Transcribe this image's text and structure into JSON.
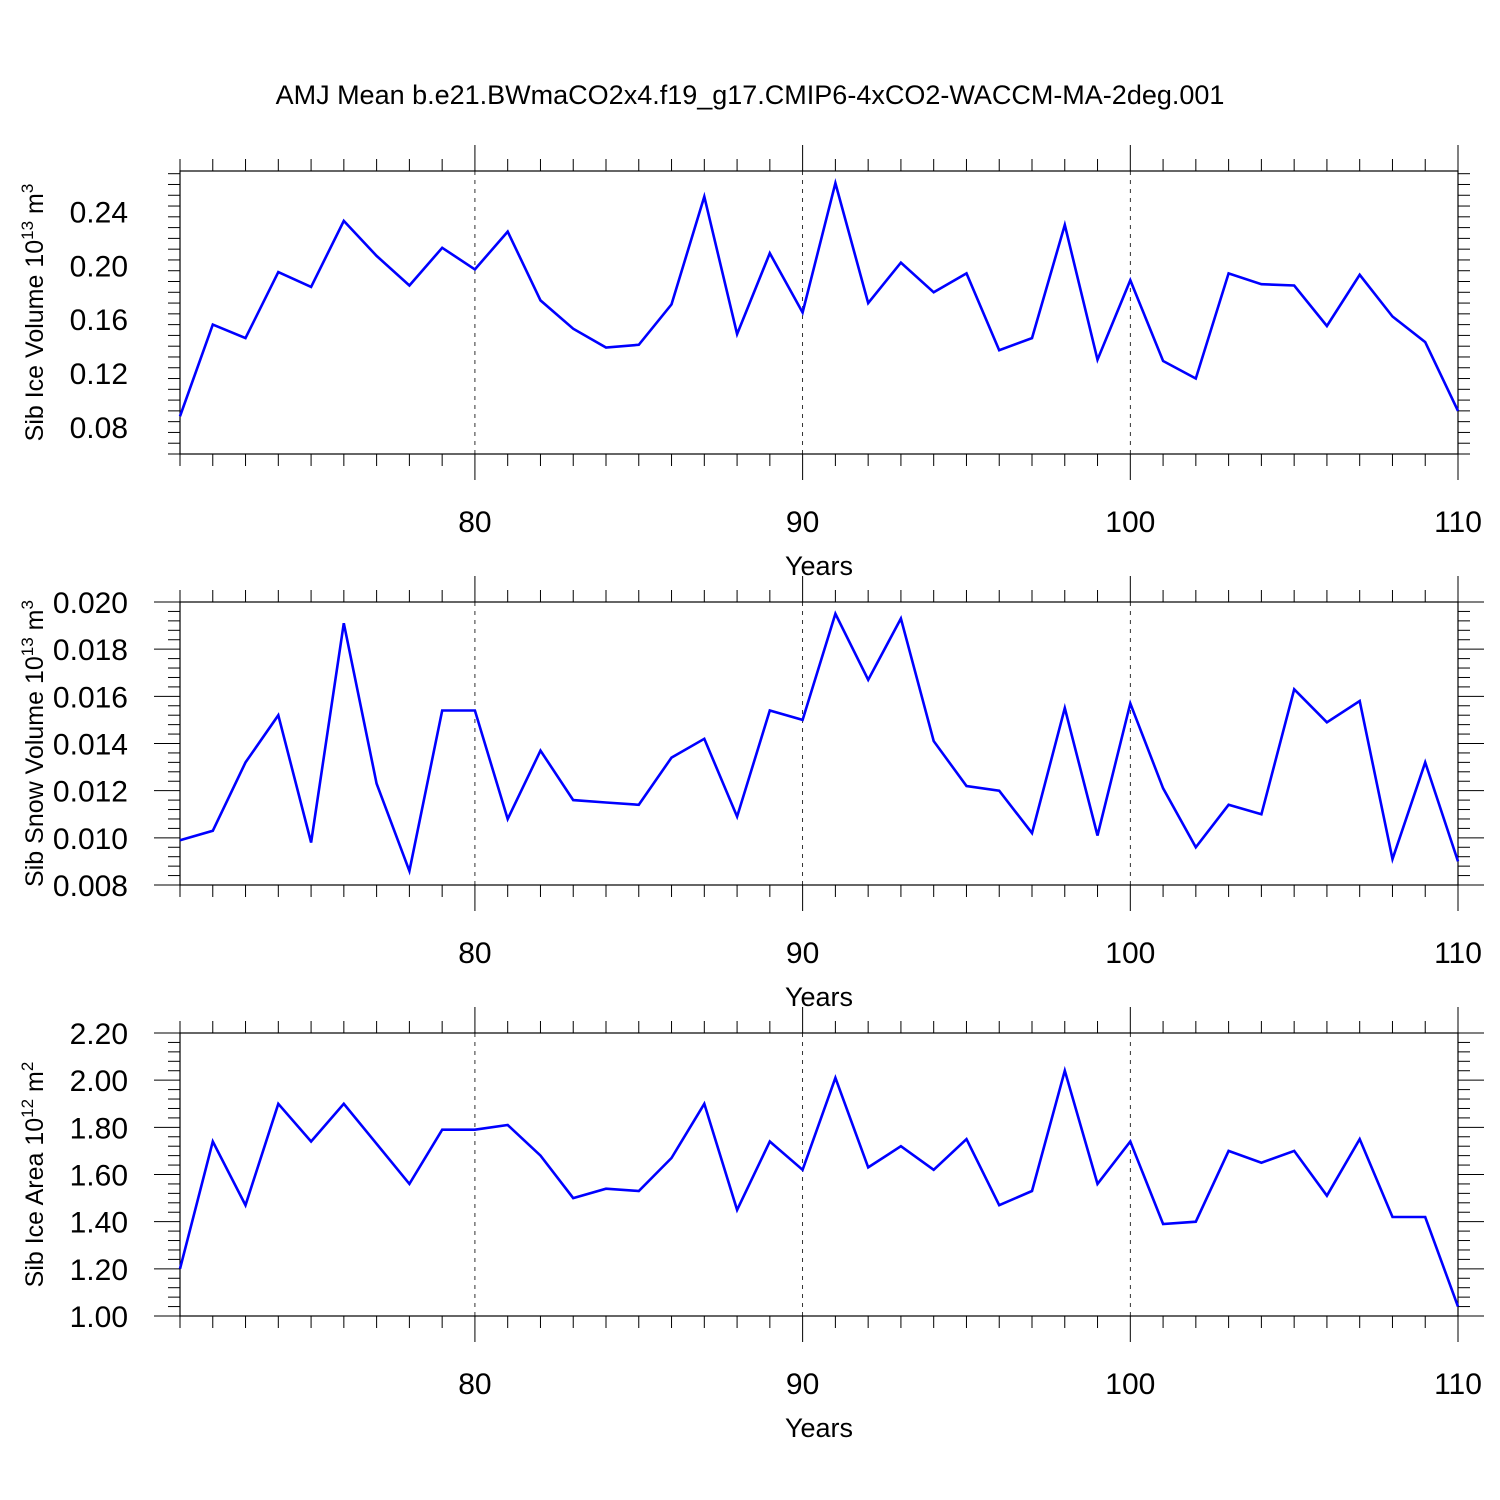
{
  "title": "AMJ Mean b.e21.BWmaCO2x4.f19_g17.CMIP6-4xCO2-WACCM-MA-2deg.001",
  "line_color": "#0000ff",
  "chart_data": [
    {
      "type": "line",
      "xlabel": "Years",
      "ylabel_text": "Sib Ice Volume 10",
      "ylabel_exp": "13",
      "ylabel_unit": " m",
      "ylabel_unit_exp": "3",
      "xlim": [
        71,
        110
      ],
      "ylim": [
        0.06,
        0.27
      ],
      "xticks": [
        80,
        90,
        100,
        110
      ],
      "xtick_labels": [
        "80",
        "90",
        "100",
        "110"
      ],
      "yticks": [
        0.08,
        0.12,
        0.16,
        0.2,
        0.24
      ],
      "ytick_labels": [
        "0.08",
        "0.12",
        "0.16",
        "0.20",
        "0.24"
      ],
      "grid": "vertical dashed at major x ticks",
      "x": [
        71,
        72,
        73,
        74,
        75,
        76,
        77,
        78,
        79,
        80,
        81,
        82,
        83,
        84,
        85,
        86,
        87,
        88,
        89,
        90,
        91,
        92,
        93,
        94,
        95,
        96,
        97,
        98,
        99,
        100,
        101,
        102,
        103,
        104,
        105,
        106,
        107,
        108,
        109,
        110
      ],
      "values": [
        0.088,
        0.156,
        0.146,
        0.195,
        0.184,
        0.233,
        0.207,
        0.185,
        0.213,
        0.197,
        0.225,
        0.174,
        0.153,
        0.139,
        0.141,
        0.171,
        0.251,
        0.149,
        0.209,
        0.165,
        0.261,
        0.172,
        0.202,
        0.18,
        0.194,
        0.137,
        0.146,
        0.23,
        0.13,
        0.189,
        0.129,
        0.116,
        0.194,
        0.186,
        0.185,
        0.155,
        0.193,
        0.162,
        0.143,
        0.092
      ]
    },
    {
      "type": "line",
      "xlabel": "Years",
      "ylabel_text": "Sib Snow Volume 10",
      "ylabel_exp": "13",
      "ylabel_unit": " m",
      "ylabel_unit_exp": "3",
      "xlim": [
        71,
        110
      ],
      "ylim": [
        0.008,
        0.02
      ],
      "xticks": [
        80,
        90,
        100,
        110
      ],
      "xtick_labels": [
        "80",
        "90",
        "100",
        "110"
      ],
      "yticks": [
        0.008,
        0.01,
        0.012,
        0.014,
        0.016,
        0.018,
        0.02
      ],
      "ytick_labels": [
        "0.008",
        "0.010",
        "0.012",
        "0.014",
        "0.016",
        "0.018",
        "0.020"
      ],
      "grid": "vertical dashed at major x ticks",
      "x": [
        71,
        72,
        73,
        74,
        75,
        76,
        77,
        78,
        79,
        80,
        81,
        82,
        83,
        84,
        85,
        86,
        87,
        88,
        89,
        90,
        91,
        92,
        93,
        94,
        95,
        96,
        97,
        98,
        99,
        100,
        101,
        102,
        103,
        104,
        105,
        106,
        107,
        108,
        109,
        110
      ],
      "values": [
        0.0099,
        0.0103,
        0.0132,
        0.0152,
        0.0098,
        0.0191,
        0.0123,
        0.0086,
        0.0154,
        0.0154,
        0.0108,
        0.0137,
        0.0116,
        0.0115,
        0.0114,
        0.0134,
        0.0142,
        0.0109,
        0.0154,
        0.015,
        0.0195,
        0.0167,
        0.0193,
        0.0141,
        0.0122,
        0.012,
        0.0102,
        0.0155,
        0.0101,
        0.0157,
        0.0121,
        0.0096,
        0.0114,
        0.011,
        0.0163,
        0.0149,
        0.0158,
        0.0091,
        0.0132,
        0.009
      ]
    },
    {
      "type": "line",
      "xlabel": "Years",
      "ylabel_text": "Sib Ice Area 10",
      "ylabel_exp": "12",
      "ylabel_unit": " m",
      "ylabel_unit_exp": "2",
      "xlim": [
        71,
        110
      ],
      "ylim": [
        1.0,
        2.2
      ],
      "xticks": [
        80,
        90,
        100,
        110
      ],
      "xtick_labels": [
        "80",
        "90",
        "100",
        "110"
      ],
      "yticks": [
        1.0,
        1.2,
        1.4,
        1.6,
        1.8,
        2.0,
        2.2
      ],
      "ytick_labels": [
        "1.00",
        "1.20",
        "1.40",
        "1.60",
        "1.80",
        "2.00",
        "2.20"
      ],
      "grid": "vertical dashed at major x ticks",
      "x": [
        71,
        72,
        73,
        74,
        75,
        76,
        77,
        78,
        79,
        80,
        81,
        82,
        83,
        84,
        85,
        86,
        87,
        88,
        89,
        90,
        91,
        92,
        93,
        94,
        95,
        96,
        97,
        98,
        99,
        100,
        101,
        102,
        103,
        104,
        105,
        106,
        107,
        108,
        109,
        110
      ],
      "values": [
        1.2,
        1.74,
        1.47,
        1.9,
        1.74,
        1.9,
        1.73,
        1.56,
        1.79,
        1.79,
        1.81,
        1.68,
        1.5,
        1.54,
        1.53,
        1.67,
        1.9,
        1.45,
        1.74,
        1.62,
        2.01,
        1.63,
        1.72,
        1.62,
        1.75,
        1.47,
        1.53,
        2.04,
        1.56,
        1.74,
        1.39,
        1.4,
        1.7,
        1.65,
        1.7,
        1.51,
        1.75,
        1.42,
        1.42,
        1.04
      ]
    }
  ]
}
